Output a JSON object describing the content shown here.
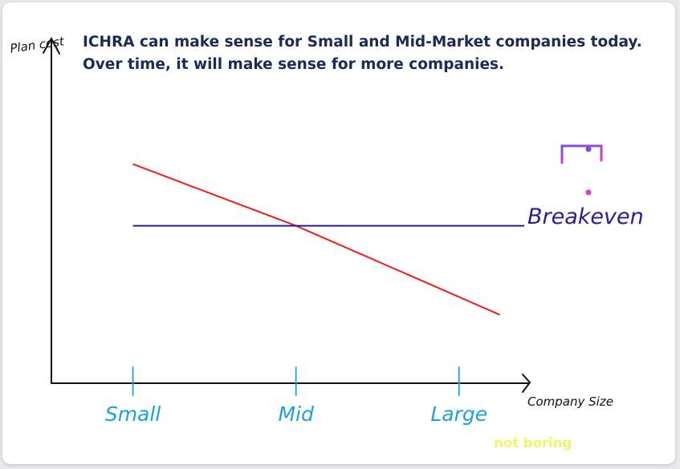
{
  "headline": {
    "line1": "ICHRA can make sense for Small and Mid-Market companies today.",
    "line2": "Over time, it will make sense for more companies."
  },
  "chart_data": {
    "type": "line",
    "categories": [
      "Small",
      "Mid",
      "Large"
    ],
    "ylabel": "Plan cost",
    "xlabel": "Company Size",
    "series": [
      {
        "name": "",
        "color": "#ee1c1c",
        "x": [
          0,
          1,
          2.25
        ],
        "y": [
          0.64,
          0.46,
          0.2
        ]
      },
      {
        "name": "Breakeven",
        "color": "#2a1d9c",
        "x": [
          0,
          2.4
        ],
        "y": [
          0.46,
          0.46
        ]
      }
    ],
    "xlim": [
      -0.5,
      2.4
    ],
    "ylim": [
      0,
      1
    ],
    "grid": false,
    "legend": "none",
    "colors": {
      "axis": "#111111",
      "category_labels": "#1fa0de",
      "breakeven_label": "#2a1d9c"
    }
  },
  "branding": {
    "watermark": "not boring",
    "logo_icon": "t-circuit-logo-icon",
    "logo_colors": [
      "#7b4de0",
      "#e13ac4"
    ]
  }
}
